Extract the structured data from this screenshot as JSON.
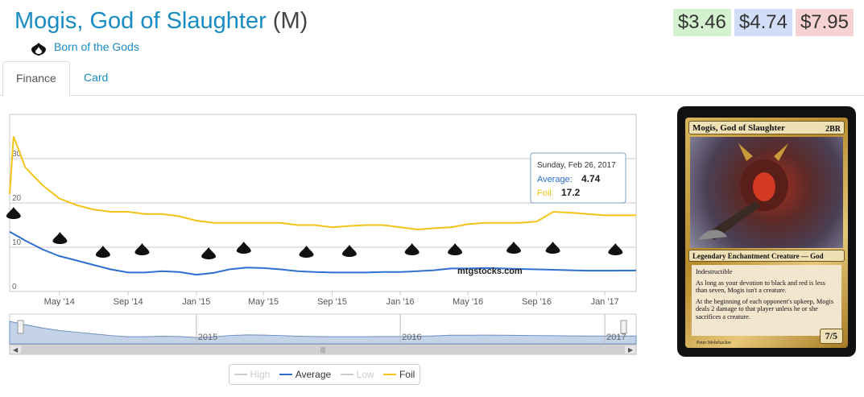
{
  "header": {
    "card_name": "Mogis, God of Slaughter",
    "rarity": "(M)",
    "set_icon": "born-of-the-gods-set-icon",
    "set_name": "Born of the Gods",
    "prices": {
      "low": "$3.46",
      "avg": "$4.74",
      "high": "$7.95"
    }
  },
  "tabs": [
    {
      "label": "Finance"
    },
    {
      "label": "Card"
    }
  ],
  "colors": {
    "link": "#1a8cc4",
    "average": "#2e6fcf",
    "foil": "#f2c418",
    "grid": "#c8c8c8"
  },
  "chart_data": {
    "type": "line",
    "x_ticks": [
      "May '14",
      "Sep '14",
      "Jan '15",
      "May '15",
      "Sep '15",
      "Jan '16",
      "May '16",
      "Sep '16",
      "Jan '17"
    ],
    "y_ticks": [
      0,
      10,
      20,
      30
    ],
    "ylim": [
      0,
      40
    ],
    "watermark": "mtgstocks.com",
    "series": [
      {
        "name": "High",
        "visible": false,
        "values": []
      },
      {
        "name": "Average",
        "visible": true,
        "x": [
          "2014-02-01",
          "2014-03-01",
          "2014-04-01",
          "2014-05-01",
          "2014-06-01",
          "2014-07-01",
          "2014-08-01",
          "2014-09-01",
          "2014-10-01",
          "2014-11-01",
          "2014-12-01",
          "2015-01-01",
          "2015-02-01",
          "2015-03-01",
          "2015-04-01",
          "2015-05-01",
          "2015-06-01",
          "2015-07-01",
          "2015-08-01",
          "2015-09-01",
          "2015-10-01",
          "2015-11-01",
          "2015-12-01",
          "2016-01-01",
          "2016-02-01",
          "2016-03-01",
          "2016-04-01",
          "2016-05-01",
          "2016-06-01",
          "2016-07-01",
          "2016-08-01",
          "2016-09-01",
          "2016-10-01",
          "2016-11-01",
          "2016-12-01",
          "2017-01-01",
          "2017-02-26"
        ],
        "values": [
          13.5,
          11.5,
          9.5,
          8,
          7,
          6,
          5,
          4.3,
          4.3,
          4.6,
          4.4,
          3.8,
          4.2,
          5,
          5.4,
          5.3,
          5,
          4.6,
          4.4,
          4.3,
          4.3,
          4.3,
          4.4,
          4.4,
          4.6,
          4.8,
          5.2,
          5.2,
          5.3,
          5.2,
          5.1,
          5,
          4.9,
          4.8,
          4.7,
          4.7,
          4.74
        ]
      },
      {
        "name": "Low",
        "visible": false,
        "values": []
      },
      {
        "name": "Foil",
        "visible": true,
        "x": [
          "2014-02-01",
          "2014-02-08",
          "2014-03-01",
          "2014-04-01",
          "2014-05-01",
          "2014-06-01",
          "2014-07-01",
          "2014-08-01",
          "2014-09-01",
          "2014-10-01",
          "2014-11-01",
          "2014-12-01",
          "2015-01-01",
          "2015-02-01",
          "2015-03-01",
          "2015-04-01",
          "2015-05-01",
          "2015-06-01",
          "2015-07-01",
          "2015-08-01",
          "2015-09-01",
          "2015-10-01",
          "2015-11-01",
          "2015-12-01",
          "2016-01-01",
          "2016-02-01",
          "2016-03-01",
          "2016-04-01",
          "2016-05-01",
          "2016-06-01",
          "2016-07-01",
          "2016-08-01",
          "2016-09-01",
          "2016-10-01",
          "2016-11-01",
          "2016-12-01",
          "2017-01-01",
          "2017-02-26"
        ],
        "values": [
          22,
          35,
          28,
          24,
          21,
          19.5,
          18.5,
          18,
          18,
          17.5,
          17.5,
          17,
          16,
          15.5,
          15.5,
          15.5,
          15.5,
          15.5,
          15,
          15,
          14.5,
          14.8,
          15,
          15,
          14.5,
          14,
          14.3,
          14.5,
          15.2,
          15.5,
          15.5,
          15.5,
          15.8,
          18,
          17.8,
          17.5,
          17.2,
          17.2
        ]
      }
    ],
    "set_markers": [
      "bng",
      "jou",
      "m15",
      "ktk",
      "frf",
      "dtk",
      "ori",
      "bfz",
      "ogw",
      "soi",
      "emn",
      "kld",
      "aer"
    ],
    "tooltip": {
      "date": "Sunday, Feb 26, 2017",
      "avg_label": "Average:",
      "avg_value": "4.74",
      "foil_label": "Foil:",
      "foil_value": "17.2"
    },
    "navigator": {
      "labels": [
        "2015",
        "2016",
        "2017"
      ]
    },
    "legend": [
      "High",
      "Average",
      "Low",
      "Foil"
    ]
  },
  "card_image": {
    "name": "Mogis, God of Slaughter",
    "cost": "2BR",
    "type_line": "Legendary Enchantment Creature — God",
    "rules": [
      "Indestructible",
      "As long as your devotion to black and red is less than seven, Mogis isn't a creature.",
      "At the beginning of each opponent's upkeep, Mogis deals 2 damage to that player unless he or she sacrifices a creature."
    ],
    "pt": "7/5",
    "artist": "Peter Mohrbacher"
  }
}
